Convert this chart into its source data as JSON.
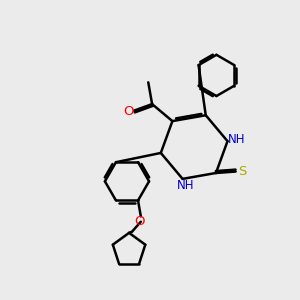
{
  "bg_color": "#ebebeb",
  "atom_colors": {
    "C": "#000000",
    "N": "#0000cc",
    "O": "#ff0000",
    "S": "#aaaa00",
    "H": "#008080"
  },
  "bond_color": "#000000",
  "bond_width": 1.8,
  "figsize": [
    3.0,
    3.0
  ],
  "dpi": 100
}
